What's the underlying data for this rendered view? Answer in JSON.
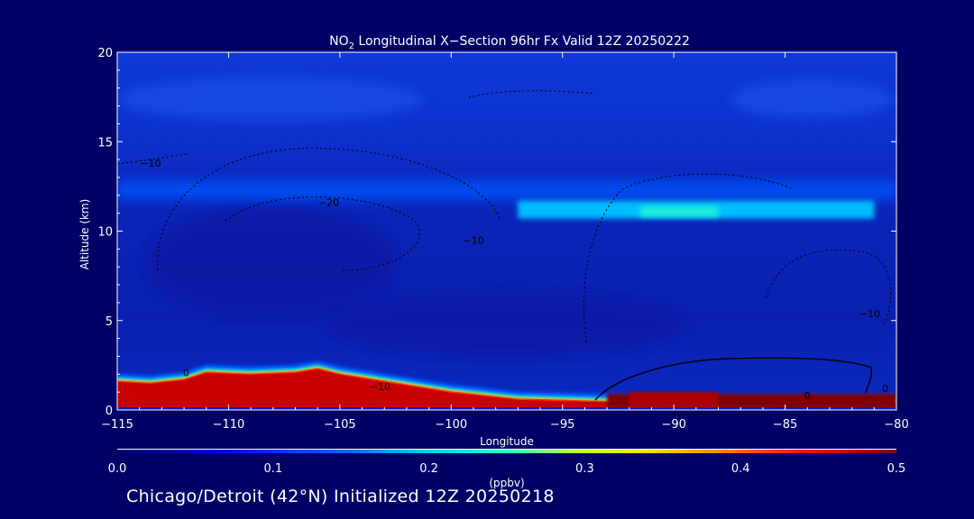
{
  "chart_data": {
    "type": "heatmap",
    "title": {
      "pre": "NO",
      "sub": "2",
      "post": " Longitudinal X−Section 96hr  Fx Valid 12Z 20250222"
    },
    "xlabel": "Longitude",
    "ylabel": "Altitude (km)",
    "xlim": [
      -115,
      -80
    ],
    "ylim": [
      0,
      20
    ],
    "x_ticks": [
      {
        "value": -115,
        "label": "−115"
      },
      {
        "value": -110,
        "label": "−110"
      },
      {
        "value": -105,
        "label": "−105"
      },
      {
        "value": -100,
        "label": "−100"
      },
      {
        "value": -95,
        "label": "−95"
      },
      {
        "value": -90,
        "label": "−90"
      },
      {
        "value": -85,
        "label": "−85"
      },
      {
        "value": -80,
        "label": "−80"
      }
    ],
    "y_ticks": [
      {
        "value": 0,
        "label": "0"
      },
      {
        "value": 5,
        "label": "5"
      },
      {
        "value": 10,
        "label": "10"
      },
      {
        "value": 15,
        "label": "15"
      },
      {
        "value": 20,
        "label": "20"
      }
    ],
    "colorbar": {
      "min": 0.0,
      "max": 0.5,
      "units": "(ppbv)",
      "ticks": [
        {
          "value": 0.0,
          "label": "0.0"
        },
        {
          "value": 0.1,
          "label": "0.1"
        },
        {
          "value": 0.2,
          "label": "0.2"
        },
        {
          "value": 0.3,
          "label": "0.3"
        },
        {
          "value": 0.4,
          "label": "0.4"
        },
        {
          "value": 0.5,
          "label": "0.5"
        }
      ]
    },
    "terrain": [
      {
        "lon": -115,
        "alt": 1.6
      },
      {
        "lon": -113.5,
        "alt": 1.5
      },
      {
        "lon": -112,
        "alt": 1.7
      },
      {
        "lon": -111,
        "alt": 2.1
      },
      {
        "lon": -109,
        "alt": 2.0
      },
      {
        "lon": -107,
        "alt": 2.1
      },
      {
        "lon": -106,
        "alt": 2.3
      },
      {
        "lon": -105,
        "alt": 2.0
      },
      {
        "lon": -103,
        "alt": 1.6
      },
      {
        "lon": -100,
        "alt": 1.0
      },
      {
        "lon": -97,
        "alt": 0.6
      },
      {
        "lon": -94,
        "alt": 0.5
      },
      {
        "lon": -91,
        "alt": 0.4
      },
      {
        "lon": -88,
        "alt": 0.4
      },
      {
        "lon": -85,
        "alt": 0.4
      },
      {
        "lon": -82,
        "alt": 0.4
      },
      {
        "lon": -80,
        "alt": 0.4
      }
    ],
    "bands": [
      {
        "alt": 12.3,
        "width": 0.55,
        "lon_from": -115,
        "lon_to": -80,
        "value": 0.12
      },
      {
        "alt": 11.2,
        "width": 0.5,
        "lon_from": -97,
        "lon_to": -81,
        "value": 0.19
      },
      {
        "alt": 11.1,
        "width": 0.3,
        "lon_from": -91.5,
        "lon_to": -88,
        "value": 0.23
      }
    ],
    "pbl_maxima": [
      {
        "lon_from": -93,
        "lon_to": -80,
        "alt_top": 0.9,
        "value": 0.5
      },
      {
        "lon_from": -92,
        "lon_to": -88,
        "alt_top": 1.0,
        "value": 0.48
      }
    ],
    "contours": [
      {
        "label": "−10",
        "lon": -113.5,
        "alt": 13.6
      },
      {
        "label": "−20",
        "lon": -105.5,
        "alt": 11.4
      },
      {
        "label": "−10",
        "lon": -99,
        "alt": 9.3
      },
      {
        "label": "−10",
        "lon": -103.2,
        "alt": 1.1
      },
      {
        "label": "−10",
        "lon": -81.2,
        "alt": 5.2
      },
      {
        "label": "0",
        "lon": -84.0,
        "alt": 0.6
      },
      {
        "label": "0",
        "lon": -80.5,
        "alt": 1.0
      },
      {
        "label": "0",
        "lon": -111.9,
        "alt": 1.9
      }
    ]
  },
  "caption": "Chicago/Detroit (42°N) Initialized 12Z 20250218",
  "colors": {
    "background": "#000066",
    "field_low": "#0a22c8",
    "field_high": "#8b0000"
  }
}
